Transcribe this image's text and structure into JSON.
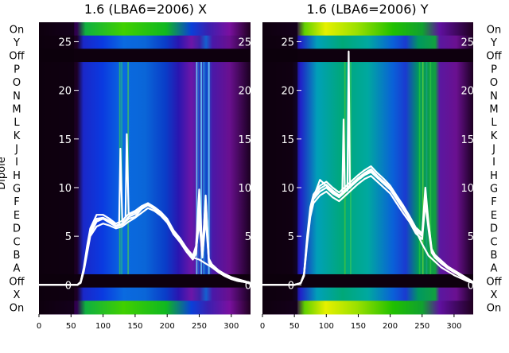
{
  "chart_data": [
    {
      "type": "heatmap",
      "title": "1.6 (LBA6=2006) X",
      "xlabel": "",
      "ylabel": "Dipole",
      "xlim": [
        0,
        330
      ],
      "x_ticks": [
        0,
        50,
        100,
        150,
        200,
        250,
        300
      ],
      "overlay_ylim": [
        -3,
        27
      ],
      "overlay_y_ticks": [
        0,
        5,
        10,
        15,
        20,
        25
      ],
      "row_labels_top_to_bottom": [
        "On",
        "Y",
        "Off",
        "P",
        "O",
        "N",
        "M",
        "L",
        "K",
        "J",
        "I",
        "H",
        "G",
        "F",
        "E",
        "D",
        "C",
        "B",
        "A",
        "Off",
        "X",
        "On"
      ],
      "overlay_series": [
        {
          "x": [
            0,
            60,
            65,
            70,
            75,
            80,
            90,
            100,
            110,
            120,
            130,
            140,
            150,
            160,
            170,
            180,
            190,
            200,
            210,
            220,
            230,
            240,
            245,
            250,
            255,
            260,
            265,
            270,
            280,
            290,
            300,
            310,
            320,
            330
          ],
          "y": [
            0,
            0,
            0.3,
            1.5,
            3.5,
            5.2,
            6.5,
            6.8,
            6.5,
            6.0,
            6.2,
            6.8,
            7.0,
            7.8,
            8.2,
            7.9,
            7.4,
            6.6,
            5.4,
            4.6,
            3.6,
            2.8,
            3.5,
            6.5,
            3.0,
            6.8,
            2.5,
            2.0,
            1.4,
            1.0,
            0.7,
            0.5,
            0.3,
            0.2
          ]
        },
        {
          "x": [
            0,
            60,
            65,
            70,
            75,
            80,
            90,
            100,
            110,
            120,
            130,
            140,
            150,
            160,
            170,
            180,
            190,
            200,
            210,
            220,
            230,
            240,
            245,
            250,
            255,
            260,
            265,
            270,
            280,
            290,
            300,
            310,
            320,
            330
          ],
          "y": [
            0,
            0,
            0.3,
            1.8,
            4.0,
            5.8,
            7.2,
            7.2,
            6.8,
            6.3,
            6.6,
            7.3,
            7.6,
            8.1,
            8.4,
            8.0,
            7.5,
            6.8,
            5.6,
            4.8,
            3.8,
            3.0,
            4.0,
            9.8,
            3.4,
            8.8,
            2.7,
            2.1,
            1.5,
            1.1,
            0.8,
            0.6,
            0.4,
            0.2
          ]
        },
        {
          "x": [
            0,
            60,
            65,
            70,
            75,
            80,
            90,
            100,
            110,
            120,
            130,
            140,
            150,
            160,
            170,
            180,
            190,
            200,
            210,
            220,
            230,
            240,
            245,
            250,
            255,
            260,
            265,
            270,
            280,
            290,
            300,
            310,
            320,
            330
          ],
          "y": [
            0,
            0,
            0.2,
            1.4,
            3.2,
            5.0,
            6.0,
            6.3,
            6.1,
            5.8,
            6.0,
            6.5,
            6.9,
            7.4,
            7.9,
            7.6,
            7.1,
            6.4,
            5.2,
            4.4,
            3.4,
            2.6,
            3.2,
            7.5,
            2.8,
            7.8,
            2.3,
            1.8,
            1.3,
            0.9,
            0.6,
            0.4,
            0.3,
            0.1
          ]
        },
        {
          "x": [
            0,
            60,
            65,
            70,
            75,
            80,
            90,
            100,
            110,
            120,
            130,
            140,
            150,
            160,
            170,
            180,
            190,
            200,
            210,
            220,
            230,
            240,
            245,
            250,
            255,
            260,
            265,
            270,
            280,
            290,
            300,
            310,
            320,
            330
          ],
          "y": [
            0,
            0,
            0.3,
            1.6,
            3.8,
            5.5,
            6.8,
            6.9,
            6.6,
            6.1,
            6.3,
            7.0,
            7.3,
            7.9,
            8.3,
            7.8,
            7.3,
            6.7,
            5.5,
            4.7,
            3.7,
            2.9,
            3.8,
            8.6,
            3.2,
            9.2,
            2.6,
            2.0,
            1.4,
            1.0,
            0.7,
            0.5,
            0.4,
            0.2
          ]
        },
        {
          "x": [
            0,
            60,
            65,
            70,
            75,
            80,
            90,
            100,
            110,
            120,
            125,
            127,
            130,
            135,
            137,
            140,
            150,
            160,
            170,
            180,
            190,
            200,
            210,
            220,
            230,
            240,
            250,
            260,
            270,
            280,
            290,
            300,
            310,
            320,
            330
          ],
          "y": [
            0,
            0,
            0.3,
            1.6,
            3.7,
            5.4,
            6.6,
            6.8,
            6.4,
            6.0,
            6.2,
            14.0,
            6.5,
            7.0,
            15.5,
            7.2,
            7.5,
            8.0,
            8.2,
            7.8,
            7.2,
            6.5,
            5.2,
            4.5,
            3.5,
            2.8,
            2.6,
            2.2,
            1.8,
            1.3,
            0.9,
            0.6,
            0.4,
            0.3,
            0.2
          ]
        }
      ],
      "colors": {
        "line": "#ffffff"
      }
    },
    {
      "type": "heatmap",
      "title": "1.6 (LBA6=2006) Y",
      "xlabel": "",
      "ylabel": "",
      "xlim": [
        0,
        330
      ],
      "x_ticks": [
        0,
        50,
        100,
        150,
        200,
        250,
        300
      ],
      "overlay_ylim": [
        -3,
        27
      ],
      "overlay_y_ticks": [
        0,
        5,
        10,
        15,
        20,
        25
      ],
      "row_labels_top_to_bottom": [
        "On",
        "Y",
        "Off",
        "P",
        "O",
        "N",
        "M",
        "L",
        "K",
        "J",
        "I",
        "H",
        "G",
        "F",
        "E",
        "D",
        "C",
        "B",
        "A",
        "Off",
        "X",
        "On"
      ],
      "overlay_series": [
        {
          "x": [
            0,
            50,
            60,
            65,
            70,
            75,
            80,
            90,
            100,
            110,
            120,
            130,
            140,
            150,
            160,
            170,
            180,
            190,
            200,
            210,
            220,
            230,
            240,
            250,
            255,
            260,
            265,
            270,
            280,
            290,
            300,
            310,
            320,
            330
          ],
          "y": [
            0,
            0,
            0.2,
            1.0,
            4.5,
            7.5,
            8.8,
            9.6,
            10.0,
            9.4,
            9.0,
            9.6,
            10.2,
            10.8,
            11.3,
            11.6,
            11.0,
            10.4,
            9.8,
            8.8,
            7.8,
            6.8,
            5.6,
            5.0,
            9.0,
            6.0,
            3.5,
            3.0,
            2.4,
            1.8,
            1.4,
            1.0,
            0.6,
            0.2
          ]
        },
        {
          "x": [
            0,
            50,
            60,
            65,
            70,
            75,
            80,
            90,
            100,
            110,
            120,
            130,
            140,
            150,
            160,
            170,
            180,
            190,
            200,
            210,
            220,
            230,
            240,
            250,
            255,
            260,
            265,
            270,
            280,
            290,
            300,
            310,
            320,
            330
          ],
          "y": [
            0,
            0,
            0.2,
            1.1,
            5.0,
            8.0,
            9.3,
            10.2,
            10.6,
            10.0,
            9.5,
            10.1,
            10.7,
            11.3,
            11.8,
            12.2,
            11.5,
            10.9,
            10.2,
            9.2,
            8.2,
            7.1,
            5.9,
            5.3,
            10.0,
            6.4,
            3.7,
            3.1,
            2.5,
            1.9,
            1.5,
            1.1,
            0.7,
            0.3
          ]
        },
        {
          "x": [
            0,
            50,
            60,
            65,
            70,
            75,
            80,
            90,
            100,
            110,
            120,
            130,
            140,
            150,
            160,
            170,
            180,
            190,
            200,
            210,
            220,
            230,
            240,
            250,
            255,
            260,
            265,
            270,
            280,
            290,
            300,
            310,
            320,
            330
          ],
          "y": [
            0,
            0,
            0.2,
            0.9,
            4.2,
            7.0,
            8.4,
            9.2,
            9.6,
            9.0,
            8.6,
            9.2,
            9.8,
            10.4,
            10.9,
            11.2,
            10.6,
            10.0,
            9.4,
            8.4,
            7.4,
            6.5,
            5.3,
            4.7,
            8.4,
            5.7,
            3.3,
            2.8,
            2.2,
            1.7,
            1.3,
            0.9,
            0.5,
            0.2
          ]
        },
        {
          "x": [
            0,
            50,
            60,
            65,
            70,
            75,
            80,
            90,
            100,
            110,
            120,
            130,
            140,
            150,
            160,
            170,
            180,
            190,
            200,
            210,
            220,
            230,
            240,
            250,
            255,
            260,
            265,
            270,
            280,
            290,
            300,
            310,
            320,
            330
          ],
          "y": [
            0,
            0,
            0.2,
            1.0,
            4.7,
            7.7,
            9.0,
            9.9,
            10.3,
            9.7,
            9.2,
            9.8,
            10.4,
            11.0,
            11.5,
            11.9,
            11.2,
            10.6,
            10.0,
            9.0,
            8.0,
            6.9,
            5.7,
            5.1,
            9.5,
            6.2,
            3.6,
            3.0,
            2.4,
            1.8,
            1.4,
            1.0,
            0.6,
            0.3
          ]
        },
        {
          "x": [
            0,
            50,
            60,
            65,
            70,
            75,
            80,
            90,
            100,
            110,
            120,
            125,
            127,
            129,
            131,
            133,
            135,
            137,
            140,
            150,
            160,
            170,
            180,
            190,
            200,
            210,
            220,
            230,
            240,
            250,
            260,
            270,
            280,
            290,
            300,
            310,
            320,
            330
          ],
          "y": [
            0,
            0,
            0.2,
            1.0,
            4.6,
            7.6,
            9.0,
            10.8,
            10.2,
            9.6,
            9.1,
            9.4,
            17.0,
            9.6,
            9.8,
            9.7,
            24.0,
            10.0,
            10.3,
            10.9,
            11.4,
            11.8,
            11.1,
            10.5,
            9.9,
            8.9,
            7.9,
            6.8,
            5.6,
            4.2,
            3.0,
            2.4,
            1.8,
            1.4,
            1.0,
            0.7,
            0.4,
            0.2
          ]
        }
      ],
      "colors": {
        "line": "#ffffff"
      }
    }
  ]
}
